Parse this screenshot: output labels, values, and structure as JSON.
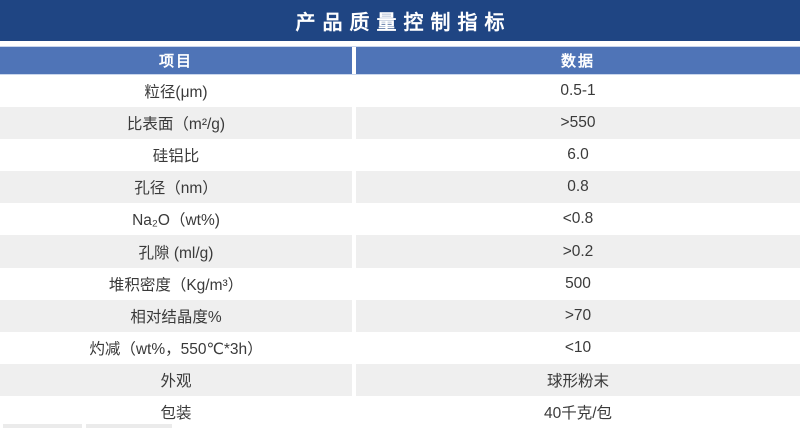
{
  "title": "产品质量控制指标",
  "table": {
    "headers": [
      "项目",
      "数据"
    ],
    "rows": [
      {
        "item": "粒径(μm)",
        "value": "0.5-1"
      },
      {
        "item": "比表面（m²/g)",
        "value": ">550"
      },
      {
        "item": "硅铝比",
        "value": "6.0"
      },
      {
        "item": "孔径（nm）",
        "value": "0.8"
      },
      {
        "item": "Na₂O（wt%)",
        "value": "<0.8"
      },
      {
        "item": "孔隙 (ml/g)",
        "value": ">0.2"
      },
      {
        "item": "堆积密度（Kg/m³）",
        "value": "500"
      },
      {
        "item": "相对结晶度%",
        "value": ">70"
      },
      {
        "item": "灼减（wt%，550℃*3h）",
        "value": "<10"
      },
      {
        "item": "外观",
        "value": "球形粉末"
      },
      {
        "item": "包装",
        "value": "40千克/包"
      }
    ]
  },
  "colors": {
    "title_bg": "#1f4583",
    "header_bg": "#4f74b7",
    "row_alt_bg": "#efefef",
    "row_bg": "#ffffff",
    "text_color": "#3a3a3a",
    "divider_color": "#ffffff"
  }
}
